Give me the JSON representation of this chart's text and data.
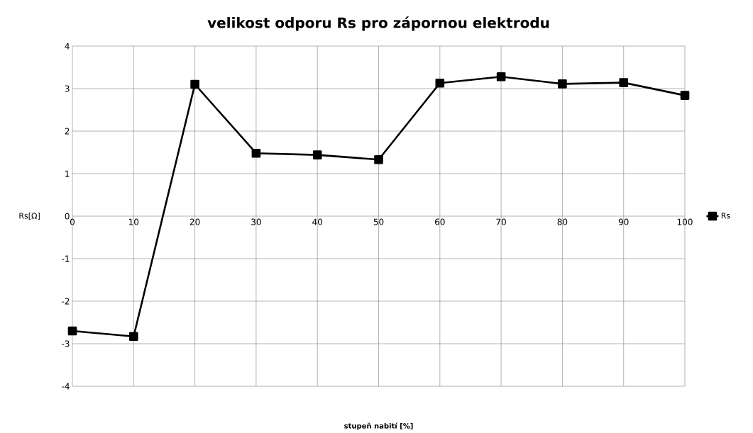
{
  "chart_data": {
    "type": "line",
    "title": "velikost odporu Rs pro zápornou elektrodu",
    "xlabel": "stupeň nabití [%]",
    "ylabel": "Rs[Ω]",
    "x": [
      0,
      10,
      20,
      30,
      40,
      50,
      60,
      70,
      80,
      90,
      100
    ],
    "series": [
      {
        "name": "Rs",
        "color": "#000000",
        "values": [
          -2.7,
          -2.83,
          3.1,
          1.48,
          1.44,
          1.33,
          3.13,
          3.28,
          3.11,
          3.14,
          2.84
        ]
      }
    ],
    "xlim": [
      0,
      100
    ],
    "xticks": [
      0,
      10,
      20,
      30,
      40,
      50,
      60,
      70,
      80,
      90,
      100
    ],
    "ylim": [
      -4,
      4
    ],
    "yticks": [
      -4,
      -3,
      -2,
      -1,
      0,
      1,
      2,
      3,
      4
    ],
    "grid": true,
    "legend": "right",
    "marker": "square",
    "line_style": "solid"
  }
}
